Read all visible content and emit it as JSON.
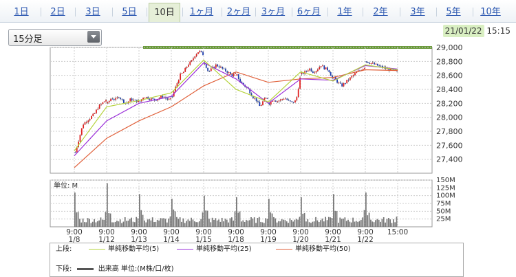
{
  "tabs": [
    {
      "label": "1日",
      "active": false
    },
    {
      "label": "2日",
      "active": false
    },
    {
      "label": "3日",
      "active": false
    },
    {
      "label": "5日",
      "active": false
    },
    {
      "label": "10日",
      "active": true
    },
    {
      "label": "1ヶ月",
      "active": false
    },
    {
      "label": "2ヶ月",
      "active": false
    },
    {
      "label": "3ヶ月",
      "active": false
    },
    {
      "label": "6ヶ月",
      "active": false
    },
    {
      "label": "1年",
      "active": false
    },
    {
      "label": "2年",
      "active": false
    },
    {
      "label": "3年",
      "active": false
    },
    {
      "label": "5年",
      "active": false
    },
    {
      "label": "10年",
      "active": false
    }
  ],
  "interval_select": {
    "selected": "15分足"
  },
  "timestamp": {
    "date": "21/01/22",
    "time": "15:15"
  },
  "legend": {
    "upper_label": "上段:",
    "lower_label": "下段:",
    "lower_item": "出来高 単位:(M株/口/枚)"
  },
  "colors": {
    "candle_up": "#e02020",
    "candle_down": "#1f3fb0",
    "ma5": "#b5d33c",
    "ma25": "#9b30d9",
    "ma50": "#e0603a",
    "volume": "#777777",
    "grid": "#cccccc",
    "top_band": "#6a9a3a"
  },
  "chart_data": [
    {
      "type": "candlestick",
      "ylim": [
        27200,
        29000
      ],
      "y_ticks": [
        27400,
        27600,
        27800,
        28000,
        28200,
        28400,
        28600,
        28800,
        29000
      ],
      "y_tick_labels": [
        "27,400",
        "27,600",
        "27,800",
        "28,000",
        "28,200",
        "28,400",
        "28,600",
        "28,800",
        "29,000"
      ],
      "sessions": [
        "1/8",
        "1/12",
        "1/13",
        "1/14",
        "1/15",
        "1/18",
        "1/19",
        "1/20",
        "1/21",
        "1/22"
      ],
      "x_tick_labels": [
        {
          "time": "9:00",
          "date": "1/8"
        },
        {
          "time": "9:00",
          "date": "1/12"
        },
        {
          "time": "9:00",
          "date": "1/13"
        },
        {
          "time": "9:00",
          "date": "1/14"
        },
        {
          "time": "9:00",
          "date": "1/15"
        },
        {
          "time": "9:00",
          "date": "1/18"
        },
        {
          "time": "9:00",
          "date": "1/19"
        },
        {
          "time": "9:00",
          "date": "1/20"
        },
        {
          "time": "9:00",
          "date": "1/21"
        },
        {
          "time": "9:00",
          "date": "1/22"
        },
        {
          "time": "15:00",
          "date": ""
        }
      ],
      "series": [
        {
          "name": "単純移動平均(5)",
          "color": "#b5d33c"
        },
        {
          "name": "単純移動平均(25)",
          "color": "#9b30d9"
        },
        {
          "name": "単純移動平均(50)",
          "color": "#e0603a"
        }
      ],
      "session_path": [
        [
          27500,
          27700,
          27900,
          27950,
          28000,
          28050,
          28150,
          28200,
          28250
        ],
        [
          28200,
          28280,
          28250,
          28300,
          28230,
          28200,
          28260,
          28240,
          28230
        ],
        [
          28230,
          28300,
          28280,
          28260,
          28250,
          28280,
          28300,
          28260,
          28250
        ],
        [
          28300,
          28450,
          28600,
          28650,
          28750,
          28800,
          28900,
          28950,
          28900
        ],
        [
          28780,
          28650,
          28700,
          28750,
          28720,
          28680,
          28650,
          28600,
          28620
        ],
        [
          28600,
          28500,
          28450,
          28400,
          28300,
          28250,
          28150,
          28250,
          28280
        ],
        [
          28200,
          28260,
          28230,
          28250,
          28280,
          28230,
          28210,
          28240,
          28560
        ],
        [
          28620,
          28650,
          28700,
          28650,
          28680,
          28750,
          28700,
          28680,
          28560
        ],
        [
          28560,
          28500,
          28450,
          28500,
          28550,
          28600,
          28650,
          28680,
          28720
        ],
        [
          28800,
          28780,
          28760,
          28740,
          28720,
          28700,
          28680,
          28670,
          28650
        ]
      ],
      "ma5_path": [
        27520,
        28150,
        28240,
        28350,
        28820,
        28400,
        28220,
        28650,
        28520,
        28750,
        28680
      ],
      "ma25_path": [
        27450,
        27950,
        28200,
        28300,
        28780,
        28550,
        28200,
        28550,
        28530,
        28740,
        28690
      ],
      "ma50_path": [
        27280,
        27700,
        27950,
        28150,
        28450,
        28650,
        28500,
        28550,
        28570,
        28680,
        28670
      ]
    },
    {
      "type": "bar",
      "unit_label": "単位: M",
      "ylim": [
        0,
        150
      ],
      "y_ticks": [
        25,
        50,
        75,
        100,
        125,
        150
      ],
      "y_tick_labels": [
        "25M",
        "50M",
        "75M",
        "100M",
        "125M",
        "150M"
      ],
      "session_peaks": [
        110,
        140,
        105,
        90,
        100,
        95,
        90,
        95,
        105,
        110
      ]
    }
  ]
}
